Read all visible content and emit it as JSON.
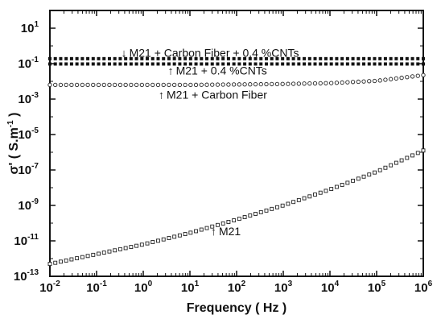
{
  "chart_data": {
    "type": "scatter",
    "xlabel": "Frequency ( Hz )",
    "ylabel": "σ' ( S.m",
    "ylabel_exp": "-1",
    "ylabel_tail": " )",
    "x_scale": "log",
    "y_scale": "log",
    "xlim": [
      0.01,
      1000000
    ],
    "ylim": [
      1e-13,
      100
    ],
    "x_ticks": [
      {
        "value": 0.01,
        "base": "10",
        "exp": "-2"
      },
      {
        "value": 0.1,
        "base": "10",
        "exp": "-1"
      },
      {
        "value": 1,
        "base": "10",
        "exp": "0"
      },
      {
        "value": 10,
        "base": "10",
        "exp": "1"
      },
      {
        "value": 100,
        "base": "10",
        "exp": "2"
      },
      {
        "value": 1000,
        "base": "10",
        "exp": "3"
      },
      {
        "value": 10000,
        "base": "10",
        "exp": "4"
      },
      {
        "value": 100000,
        "base": "10",
        "exp": "5"
      },
      {
        "value": 1000000,
        "base": "10",
        "exp": "6"
      }
    ],
    "y_ticks": [
      {
        "value": 1e-13,
        "base": "10",
        "exp": "-13"
      },
      {
        "value": 1e-11,
        "base": "10",
        "exp": "-11"
      },
      {
        "value": 1e-09,
        "base": "10",
        "exp": "-9"
      },
      {
        "value": 1e-07,
        "base": "10",
        "exp": "-7"
      },
      {
        "value": 1e-05,
        "base": "10",
        "exp": "-5"
      },
      {
        "value": 0.001,
        "base": "10",
        "exp": "-3"
      },
      {
        "value": 0.1,
        "base": "10",
        "exp": "-1"
      },
      {
        "value": 10,
        "base": "10",
        "exp": "1"
      }
    ],
    "grid": false,
    "legend": "none",
    "series": [
      {
        "name": "M21 + Carbon Fiber + 0.4 %CNTs",
        "marker": "filled-square",
        "log10_curve": [
          [
            -2,
            -0.72
          ],
          [
            6,
            -0.72
          ]
        ]
      },
      {
        "name": "M21 + 0.4 %CNTs",
        "marker": "filled-square",
        "log10_curve": [
          [
            -2,
            -1.02
          ],
          [
            6,
            -1.02
          ]
        ]
      },
      {
        "name": "M21 + Carbon Fiber",
        "marker": "open-circle",
        "log10_curve": [
          [
            -2,
            -2.2
          ],
          [
            1,
            -2.2
          ],
          [
            3,
            -2.15
          ],
          [
            4,
            -2.1
          ],
          [
            5,
            -1.97
          ],
          [
            6,
            -1.65
          ]
        ]
      },
      {
        "name": "M21",
        "marker": "open-square",
        "log10_curve": [
          [
            -2,
            -12.3
          ],
          [
            -1,
            -11.75
          ],
          [
            0,
            -11.2
          ],
          [
            1,
            -10.55
          ],
          [
            2,
            -9.8
          ],
          [
            3,
            -9.0
          ],
          [
            4,
            -8.1
          ],
          [
            5,
            -7.1
          ],
          [
            6,
            -5.9
          ]
        ]
      }
    ],
    "annotations": [
      {
        "text": "M21 + Carbon Fiber + 0.4 %CNTs",
        "arrow": "down"
      },
      {
        "text": "M21 + 0.4 %CNTs",
        "arrow": "up"
      },
      {
        "text": "M21 + Carbon Fiber",
        "arrow": "up"
      },
      {
        "text": "M21",
        "arrow": "up"
      }
    ]
  }
}
